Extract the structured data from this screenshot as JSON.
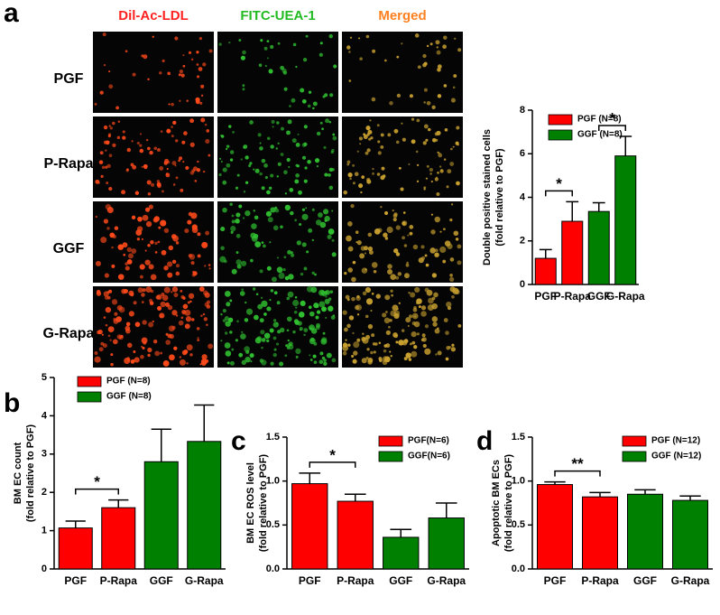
{
  "panel_letters": [
    "a",
    "b",
    "c",
    "d"
  ],
  "images": {
    "columns": [
      {
        "label": "Dil-Ac-LDL",
        "color": "#ff2020"
      },
      {
        "label": "FITC-UEA-1",
        "color": "#22bb22"
      },
      {
        "label": "Merged",
        "color": "#ff8020"
      }
    ],
    "rows": [
      "PGF",
      "P-Rapa",
      "GGF",
      "G-Rapa"
    ]
  },
  "chart_data": [
    {
      "type": "bar",
      "categories": [
        "PGF",
        "P-Rapa",
        "GGF",
        "G-Rapa"
      ],
      "values": [
        1.2,
        2.9,
        3.35,
        5.9
      ],
      "errors": [
        0.4,
        0.9,
        0.4,
        0.9
      ],
      "colors": [
        "#ff0000",
        "#ff0000",
        "#008000",
        "#008000"
      ],
      "ylim": [
        0,
        8
      ],
      "yticks": [
        0,
        2,
        4,
        6,
        8
      ],
      "ylabel": [
        "Double positive stained cells",
        "(fold relative to PGF)"
      ],
      "legend": [
        {
          "label": "PGF (N=8)",
          "color": "#ff0000"
        },
        {
          "label": "GGF (N=8)",
          "color": "#008000"
        }
      ],
      "legend_position": "upper left",
      "significance": [
        {
          "between": [
            0,
            1
          ],
          "label": "*"
        },
        {
          "between": [
            2,
            3
          ],
          "label": "*"
        }
      ]
    },
    {
      "type": "bar",
      "categories": [
        "PGF",
        "P-Rapa",
        "GGF",
        "G-Rapa"
      ],
      "values": [
        1.07,
        1.6,
        2.8,
        3.33
      ],
      "errors": [
        0.18,
        0.2,
        0.85,
        0.95
      ],
      "colors": [
        "#ff0000",
        "#ff0000",
        "#008000",
        "#008000"
      ],
      "ylim": [
        0,
        5
      ],
      "yticks": [
        0,
        1,
        2,
        3,
        4,
        5
      ],
      "ylabel": [
        "BM EC count",
        "(fold relative to PGF)"
      ],
      "legend": [
        {
          "label": "PGF (N=8)",
          "color": "#ff0000"
        },
        {
          "label": "GGF (N=8)",
          "color": "#008000"
        }
      ],
      "legend_position": "upper left",
      "significance": [
        {
          "between": [
            0,
            1
          ],
          "label": "*"
        }
      ]
    },
    {
      "type": "bar",
      "categories": [
        "PGF",
        "P-Rapa",
        "GGF",
        "G-Rapa"
      ],
      "values": [
        0.97,
        0.77,
        0.36,
        0.58
      ],
      "errors": [
        0.12,
        0.08,
        0.09,
        0.17
      ],
      "colors": [
        "#ff0000",
        "#ff0000",
        "#008000",
        "#008000"
      ],
      "ylim": [
        0,
        1.5
      ],
      "yticks": [
        {
          "value": 0,
          "label": "0.0"
        },
        0.5,
        {
          "value": 1,
          "label": "1.0"
        },
        1.5
      ],
      "ylabel": [
        "BM EC ROS level",
        "(fold relative to PGF)"
      ],
      "legend": [
        {
          "label": "PGF(N=6)",
          "color": "#ff0000"
        },
        {
          "label": "GGF(N=6)",
          "color": "#008000"
        }
      ],
      "legend_position": "upper right",
      "significance": [
        {
          "between": [
            0,
            1
          ],
          "label": "*"
        }
      ]
    },
    {
      "type": "bar",
      "categories": [
        "PGF",
        "P-Rapa",
        "GGF",
        "G-Rapa"
      ],
      "values": [
        0.96,
        0.82,
        0.85,
        0.78
      ],
      "errors": [
        0.03,
        0.05,
        0.05,
        0.05
      ],
      "colors": [
        "#ff0000",
        "#ff0000",
        "#008000",
        "#008000"
      ],
      "ylim": [
        0,
        1.5
      ],
      "yticks": [
        {
          "value": 0,
          "label": "0.0"
        },
        0.5,
        {
          "value": 1,
          "label": "1.0"
        },
        1.5
      ],
      "ylabel": [
        "Apoptotic BM ECs",
        "(fold relative to PGF)"
      ],
      "legend": [
        {
          "label": "PGF (N=12)",
          "color": "#ff0000"
        },
        {
          "label": "GGF (N=12)",
          "color": "#008000"
        }
      ],
      "legend_position": "upper right",
      "significance": [
        {
          "between": [
            0,
            1
          ],
          "label": "**"
        }
      ]
    }
  ]
}
